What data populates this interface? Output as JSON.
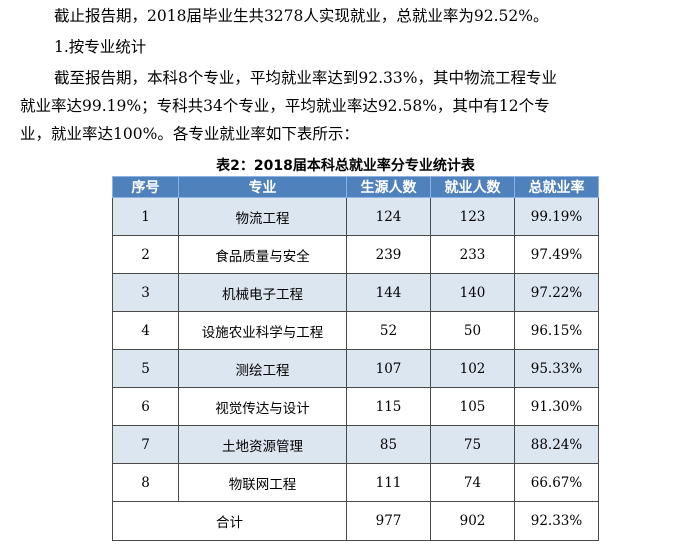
{
  "paragraphs": {
    "p1": "截止报告期，2018届毕业生共3278人实现就业，总就业率为92.52%。",
    "p2": "1.按专业统计",
    "p3_line1": "截至报告期，本科8个专业，平均就业率达到92.33%，其中物流工程专业",
    "p3_line2": "就业率达99.19%；专科共34个专业，平均就业率达92.58%，其中有12个专",
    "p3_line3": "业，就业率达100%。各专业就业率如下表所示："
  },
  "table": {
    "caption": "表2：2018届本科总就业率分专业统计表",
    "headers": [
      "序号",
      "专业",
      "生源人数",
      "就业人数",
      "总就业率"
    ],
    "rows": [
      {
        "no": "1",
        "major": "物流工程",
        "source": "124",
        "employed": "123",
        "rate": "99.19%"
      },
      {
        "no": "2",
        "major": "食品质量与安全",
        "source": "239",
        "employed": "233",
        "rate": "97.49%"
      },
      {
        "no": "3",
        "major": "机械电子工程",
        "source": "144",
        "employed": "140",
        "rate": "97.22%"
      },
      {
        "no": "4",
        "major": "设施农业科学与工程",
        "source": "52",
        "employed": "50",
        "rate": "96.15%"
      },
      {
        "no": "5",
        "major": "测绘工程",
        "source": "107",
        "employed": "102",
        "rate": "95.33%"
      },
      {
        "no": "6",
        "major": "视觉传达与设计",
        "source": "115",
        "employed": "105",
        "rate": "91.30%"
      },
      {
        "no": "7",
        "major": "土地资源管理",
        "source": "85",
        "employed": "75",
        "rate": "88.24%"
      },
      {
        "no": "8",
        "major": "物联网工程",
        "source": "111",
        "employed": "74",
        "rate": "66.67%"
      }
    ],
    "total": {
      "label": "合计",
      "source": "977",
      "employed": "902",
      "rate": "92.33%"
    }
  },
  "colors": {
    "header_bg": "#4f81bd",
    "alt_row_bg": "#dce6f1"
  }
}
